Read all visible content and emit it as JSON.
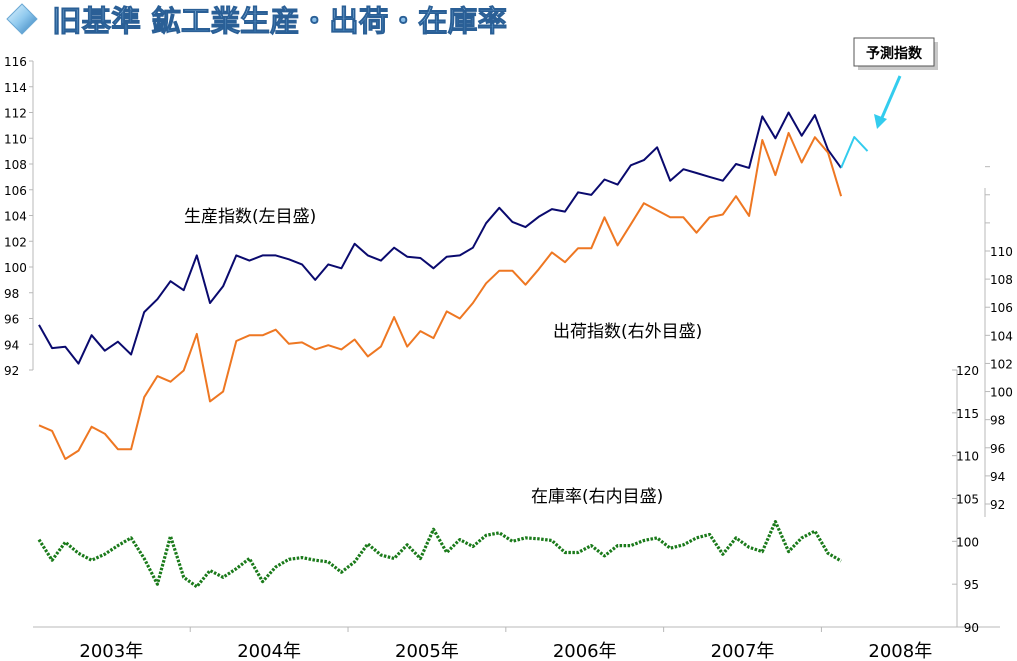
{
  "chart_data": {
    "type": "line",
    "title": "旧基準 鉱工業生産・出荷・在庫率",
    "callout": "予測指数",
    "x_labels": [
      "2003年",
      "2004年",
      "2005年",
      "2006年",
      "2007年",
      "2008年"
    ],
    "grid": false,
    "series": [
      {
        "name": "生産指数(左目盛)",
        "axis": "left",
        "color": "#0a0a6e",
        "start": "2003-01",
        "values": [
          95.5,
          93.7,
          93.8,
          92.5,
          94.7,
          93.5,
          94.2,
          93.2,
          96.5,
          97.5,
          98.9,
          98.2,
          100.9,
          97.2,
          98.5,
          100.9,
          100.5,
          100.9,
          100.9,
          100.6,
          100.2,
          99.0,
          100.2,
          99.9,
          101.8,
          100.9,
          100.5,
          101.5,
          100.8,
          100.7,
          99.9,
          100.8,
          100.9,
          101.5,
          103.4,
          104.6,
          103.5,
          103.1,
          103.9,
          104.5,
          104.3,
          105.8,
          105.6,
          106.8,
          106.4,
          107.9,
          108.3,
          109.3,
          106.7,
          107.6,
          107.3,
          107.0,
          106.7,
          108.0,
          107.7,
          111.7,
          110.0,
          112.0,
          110.2,
          111.8,
          109.1,
          107.7
        ]
      },
      {
        "name": "予測指数",
        "axis": "left",
        "color": "#33ccee",
        "start": "2008-02",
        "values": [
          107.7,
          110.1,
          109.0
        ]
      },
      {
        "name": "出荷指数(右外目盛)",
        "axis": "right-outer",
        "color": "#ee7722",
        "start": "2003-01",
        "values": [
          97.6,
          97.2,
          95.2,
          95.8,
          97.5,
          97.0,
          95.9,
          95.9,
          99.6,
          101.1,
          100.7,
          101.5,
          104.1,
          99.3,
          100.0,
          103.6,
          104.0,
          104.0,
          104.4,
          103.4,
          103.5,
          103.0,
          103.3,
          103.0,
          103.7,
          102.5,
          103.2,
          105.3,
          103.2,
          104.3,
          103.8,
          105.7,
          105.2,
          106.3,
          107.7,
          108.6,
          108.6,
          107.6,
          108.7,
          109.9,
          109.2,
          110.2,
          110.2,
          112.4,
          110.4,
          111.9,
          113.4,
          112.9,
          112.4,
          112.4,
          111.3,
          112.4,
          112.6,
          113.9,
          112.5,
          117.9,
          115.4,
          118.4,
          116.3,
          118.1,
          117.0,
          113.9
        ]
      },
      {
        "name": "在庫率(右内目盛)",
        "axis": "right-inner",
        "color": "#1a7a1a",
        "start": "2003-01",
        "values": [
          100.2,
          97.8,
          99.9,
          98.6,
          97.8,
          98.5,
          99.5,
          100.4,
          98.0,
          95.0,
          100.6,
          95.8,
          94.7,
          96.6,
          95.8,
          96.8,
          98.0,
          95.3,
          97.0,
          97.9,
          98.1,
          97.8,
          97.6,
          96.4,
          97.6,
          99.7,
          98.4,
          98.0,
          99.6,
          98.0,
          101.4,
          98.7,
          100.2,
          99.4,
          100.7,
          101.0,
          100.0,
          100.4,
          100.3,
          100.1,
          98.7,
          98.7,
          99.5,
          98.3,
          99.5,
          99.5,
          100.1,
          100.4,
          99.2,
          99.6,
          100.4,
          100.8,
          98.5,
          100.4,
          99.3,
          98.8,
          102.3,
          98.8,
          100.4,
          101.2,
          98.6,
          97.7
        ]
      }
    ],
    "axes": {
      "left": {
        "min": 92,
        "max": 116,
        "step": 2,
        "ticks": [
          "92",
          "94",
          "96",
          "98",
          "100",
          "102",
          "104",
          "106",
          "108",
          "110",
          "112",
          "114",
          "116"
        ]
      },
      "right_outer": {
        "min": 92,
        "max": 110,
        "step": 2,
        "ticks": [
          "92",
          "94",
          "96",
          "98",
          "100",
          "102",
          "104",
          "106",
          "108",
          "110"
        ]
      },
      "right_inner": {
        "min": 90,
        "max": 120,
        "step": 5,
        "ticks": [
          "90",
          "95",
          "100",
          "105",
          "110",
          "115",
          "120"
        ]
      }
    }
  }
}
